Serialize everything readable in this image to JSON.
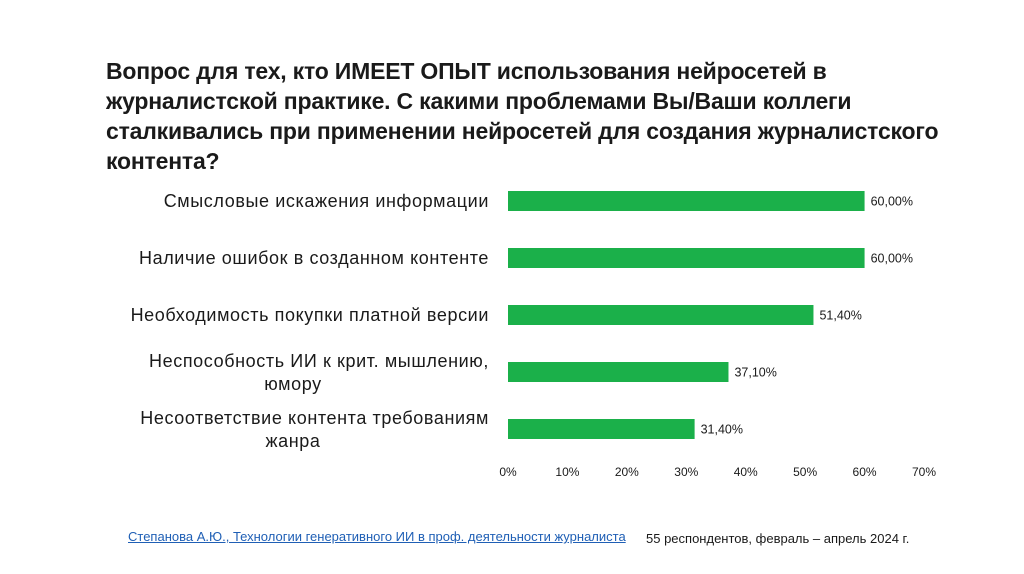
{
  "slide": {
    "title": "Вопрос для тех, кто ИМЕЕТ ОПЫТ использования нейросетей в журналистской практике. С какими проблемами Вы/Ваши коллеги сталкивались при применении нейросетей для создания журналистского контента?",
    "source_link": "Степанова А.Ю., Технологии генеративного ИИ в проф. деятельности журналиста",
    "respondents_note": "55 респондентов, февраль – апрель 2024 г."
  },
  "chart_data": {
    "type": "bar",
    "orientation": "horizontal",
    "categories": [
      [
        "Смысловые искажения информации"
      ],
      [
        "Наличие ошибок в созданном контенте"
      ],
      [
        "Необходимость покупки платной версии"
      ],
      [
        "Неспособность ИИ к крит. мышлению,",
        "юмору"
      ],
      [
        "Несоответствие контента требованиям",
        "жанра"
      ]
    ],
    "values": [
      60.0,
      60.0,
      51.4,
      37.1,
      31.4
    ],
    "value_labels": [
      "60,00%",
      "60,00%",
      "51,40%",
      "37,10%",
      "31,40%"
    ],
    "xlim": [
      0,
      70
    ],
    "x_ticks": [
      0,
      10,
      20,
      30,
      40,
      50,
      60,
      70
    ],
    "x_tick_labels": [
      "0%",
      "10%",
      "20%",
      "30%",
      "40%",
      "50%",
      "60%",
      "70%"
    ],
    "bar_color": "#1bb04a",
    "grid": false,
    "legend": false
  }
}
